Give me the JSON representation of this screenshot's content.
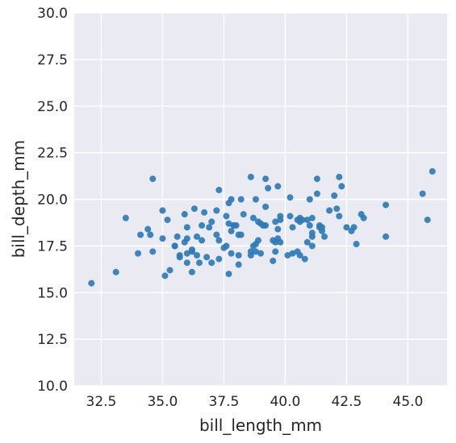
{
  "chart_data": {
    "type": "scatter",
    "title": "",
    "xlabel": "bill_length_mm",
    "ylabel": "bill_depth_mm",
    "xlim": [
      31.4,
      46.6
    ],
    "ylim": [
      10,
      30
    ],
    "xticks": [
      32.5,
      35.0,
      37.5,
      40.0,
      42.5,
      45.0
    ],
    "xtick_labels": [
      "32.5",
      "35.0",
      "37.5",
      "40.0",
      "42.5",
      "45.0"
    ],
    "yticks": [
      10,
      12.5,
      15,
      17.5,
      20,
      22.5,
      25,
      27.5,
      30
    ],
    "ytick_labels": [
      "10.0",
      "12.5",
      "15.0",
      "17.5",
      "20.0",
      "22.5",
      "25.0",
      "27.5",
      "30.0"
    ],
    "grid": true,
    "colors": {
      "background": "#eaeaf2",
      "grid": "#ffffff",
      "point": "#2f7ab5"
    },
    "x": [
      32.1,
      33.1,
      33.5,
      34.0,
      34.1,
      34.4,
      34.5,
      34.6,
      34.6,
      35.0,
      35.0,
      35.1,
      35.2,
      35.3,
      35.5,
      35.5,
      35.6,
      35.7,
      35.7,
      35.9,
      35.9,
      36.0,
      36.0,
      36.0,
      36.0,
      36.2,
      36.2,
      36.2,
      36.3,
      36.4,
      36.4,
      36.5,
      36.6,
      36.6,
      36.7,
      36.8,
      36.9,
      37.0,
      37.0,
      37.2,
      37.2,
      37.3,
      37.3,
      37.3,
      37.5,
      37.6,
      37.6,
      37.7,
      37.7,
      37.7,
      37.8,
      37.8,
      37.8,
      37.9,
      37.9,
      38.0,
      38.1,
      38.1,
      38.1,
      38.2,
      38.2,
      38.3,
      38.6,
      38.6,
      38.6,
      38.7,
      38.7,
      38.8,
      38.8,
      38.8,
      38.9,
      38.9,
      39.0,
      39.0,
      39.1,
      39.2,
      39.2,
      39.2,
      39.3,
      39.5,
      39.5,
      39.6,
      39.6,
      39.6,
      39.7,
      39.7,
      39.7,
      39.8,
      39.8,
      39.8,
      40.1,
      40.2,
      40.2,
      40.3,
      40.3,
      40.5,
      40.5,
      40.6,
      40.6,
      40.6,
      40.7,
      40.8,
      40.9,
      40.9,
      41.0,
      41.0,
      41.1,
      41.1,
      41.1,
      41.1,
      41.3,
      41.3,
      41.4,
      41.4,
      41.5,
      41.5,
      41.6,
      41.8,
      42.0,
      42.1,
      42.2,
      42.2,
      42.3,
      42.5,
      42.7,
      42.8,
      42.9,
      43.1,
      43.2,
      44.1,
      44.1,
      45.6,
      45.8,
      46.0
    ],
    "y": [
      15.5,
      16.1,
      19.0,
      17.1,
      18.1,
      18.4,
      18.1,
      21.1,
      17.2,
      17.9,
      19.4,
      15.9,
      18.9,
      16.2,
      17.5,
      17.5,
      18.0,
      17.0,
      16.9,
      19.2,
      17.7,
      16.6,
      18.5,
      17.9,
      17.1,
      16.1,
      17.3,
      17.2,
      19.5,
      17.0,
      18.0,
      16.6,
      17.8,
      18.6,
      19.3,
      16.9,
      18.5,
      18.8,
      16.6,
      19.4,
      18.1,
      20.5,
      17.8,
      16.8,
      17.4,
      17.5,
      19.1,
      18.7,
      19.8,
      16.0,
      20.0,
      18.3,
      17.1,
      18.6,
      18.6,
      18.6,
      17.0,
      16.5,
      18.1,
      20.0,
      18.1,
      19.2,
      21.2,
      17.0,
      17.2,
      17.5,
      19.0,
      17.6,
      17.2,
      20.0,
      17.8,
      18.8,
      17.1,
      18.7,
      18.6,
      21.1,
      18.6,
      19.6,
      20.6,
      16.7,
      17.8,
      18.8,
      17.7,
      17.2,
      18.4,
      17.9,
      20.7,
      18.9,
      19.1,
      17.7,
      17.0,
      19.1,
      20.1,
      17.1,
      18.5,
      18.9,
      17.2,
      18.8,
      19.0,
      17.0,
      18.9,
      16.8,
      17.7,
      18.9,
      18.6,
      20.0,
      19.0,
      18.2,
      18.0,
      17.5,
      20.3,
      21.1,
      18.5,
      18.6,
      18.3,
      18.5,
      18.0,
      19.4,
      20.2,
      19.5,
      19.1,
      21.2,
      20.7,
      18.5,
      18.3,
      18.5,
      17.6,
      19.2,
      19.0,
      19.7,
      18.0,
      20.3,
      18.9,
      21.5
    ]
  }
}
